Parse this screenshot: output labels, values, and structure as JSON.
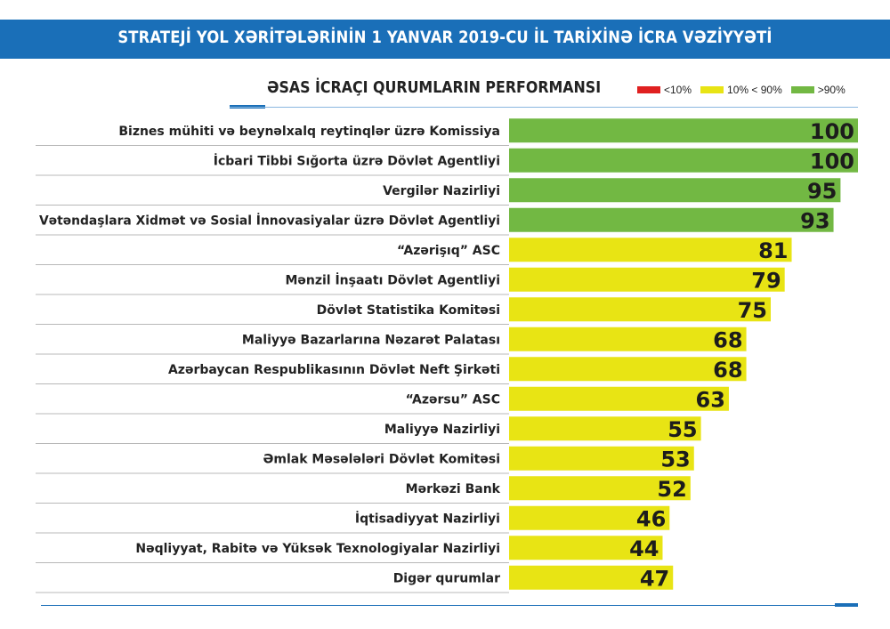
{
  "header": {
    "title": "STRATEJİ YOL XƏRİTƏLƏRİNİN 1 YANVAR 2019-CU İL TARİXİNƏ İCRA VƏZİYYƏTİ"
  },
  "legend": {
    "items": [
      {
        "label": "<10%",
        "color": "#e02020"
      },
      {
        "label": "10% < 90%",
        "color": "#e8e414"
      },
      {
        "label": ">90%",
        "color": "#72b843"
      }
    ]
  },
  "colors": {
    "green": "#72b843",
    "yellow": "#e8e414",
    "red": "#e02020",
    "accent": "#1a6fb8"
  },
  "chart_data": {
    "type": "bar",
    "orientation": "horizontal",
    "title": "ƏSAS İCRAÇI QURUMLARIN PERFORMANSI",
    "xlim": [
      0,
      100
    ],
    "grid": false,
    "legend_position": "top-right",
    "categories": [
      "Biznes mühiti və beynəlxalq reytinqlər üzrə Komissiya",
      "İcbari Tibbi Sığorta üzrə Dövlət Agentliyi",
      "Vergilər Nazirliyi",
      "Vətəndaşlara Xidmət və Sosial İnnovasiyalar üzrə Dövlət Agentliyi",
      "“Azərişıq” ASC",
      "Mənzil İnşaatı Dövlət Agentliyi",
      "Dövlət Statistika Komitəsi",
      "Maliyyə Bazarlarına Nəzarət Palatası",
      "Azərbaycan Respublikasının Dövlət Neft Şirkəti",
      "“Azərsu” ASC",
      "Maliyyə Nazirliyi",
      "Əmlak Məsələləri Dövlət Komitəsi",
      "Mərkəzi Bank",
      "İqtisadiyyat Nazirliyi",
      "Nəqliyyat, Rabitə və Yüksək Texnologiyalar Nazirliyi",
      "Digər qurumlar"
    ],
    "values": [
      100,
      100,
      95,
      93,
      81,
      79,
      75,
      68,
      68,
      63,
      55,
      53,
      52,
      46,
      44,
      47
    ]
  }
}
